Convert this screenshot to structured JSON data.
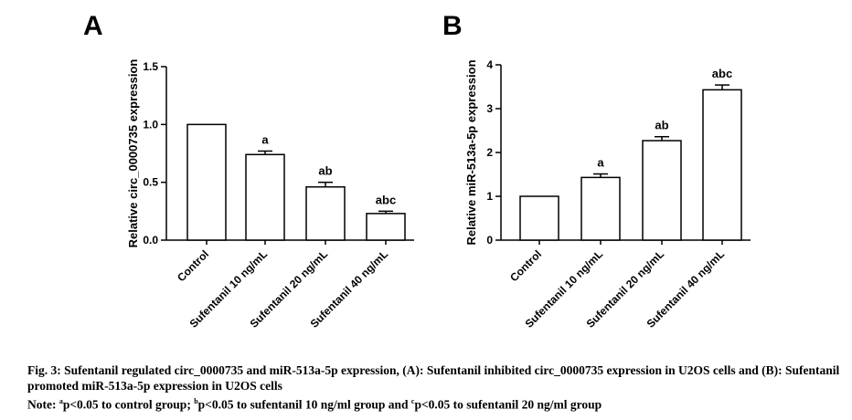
{
  "chart_data": [
    {
      "panel": "A",
      "type": "bar",
      "ylabel": "Relative circ_0000735 expression",
      "xlabel": "",
      "categories": [
        "Control",
        "Sufentanil 10 ng/mL",
        "Sufentanil 20 ng/mL",
        "Sufentanil 40 ng/mL"
      ],
      "values": [
        1.0,
        0.74,
        0.46,
        0.23
      ],
      "errors": [
        0.0,
        0.03,
        0.04,
        0.02
      ],
      "significance": [
        "",
        "a",
        "ab",
        "abc"
      ],
      "ylim": [
        0,
        1.5
      ],
      "yticks": [
        0,
        0.5,
        1.0,
        1.5
      ],
      "ytick_labels": [
        "0.0",
        "0.5",
        "1.0",
        "1.5"
      ]
    },
    {
      "panel": "B",
      "type": "bar",
      "ylabel": "Relative miR-513a-5p expression",
      "xlabel": "",
      "categories": [
        "Control",
        "Sufentanil 10 ng/mL",
        "Sufentanil 20 ng/mL",
        "Sufentanil 40 ng/mL"
      ],
      "values": [
        1.0,
        1.43,
        2.27,
        3.43
      ],
      "errors": [
        0.0,
        0.08,
        0.09,
        0.11
      ],
      "significance": [
        "",
        "a",
        "ab",
        "abc"
      ],
      "ylim": [
        0,
        4
      ],
      "yticks": [
        0,
        1,
        2,
        3,
        4
      ],
      "ytick_labels": [
        "0",
        "1",
        "2",
        "3",
        "4"
      ]
    }
  ],
  "caption": {
    "fig_label": "Fig. 3:",
    "text": "Sufentanil regulated circ_0000735 and miR-513a-5p expression, (A): Sufentanil inhibited circ_0000735 expression in U2OS cells and (B): Sufentanil promoted miR-513a-5p expression in U2OS cells",
    "note_label": "Note:",
    "note_a_sup": "a",
    "note_a_text": "p<0.05 to control group;",
    "note_b_sup": "b",
    "note_b_text": "p<0.05 to sufentanil 10 ng/ml group and",
    "note_c_sup": "c",
    "note_c_text": "p<0.05 to sufentanil 20 ng/ml group"
  }
}
